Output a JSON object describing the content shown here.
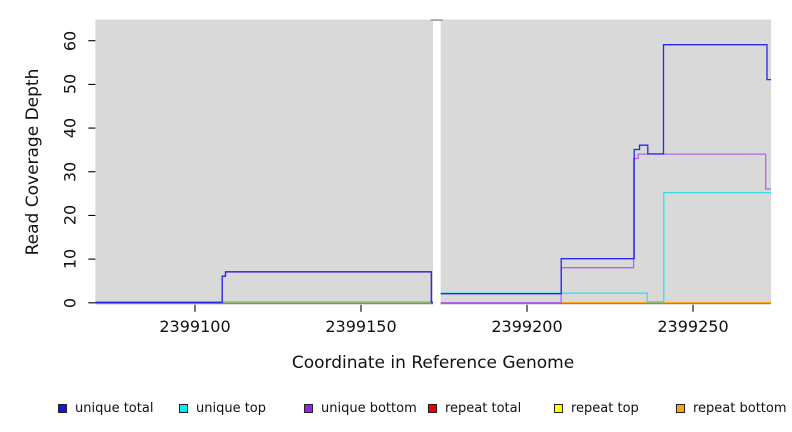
{
  "figure": {
    "background": "#ffffff",
    "panel_background": "#d9d9d9",
    "gap_cap_color": "#a6a6a6"
  },
  "axes": {
    "x": {
      "label": "Coordinate in Reference Genome",
      "ticks": [
        {
          "value": 2399100,
          "label": "2399100"
        },
        {
          "value": 2399150,
          "label": "2399150"
        },
        {
          "value": 2399200,
          "label": "2399200"
        },
        {
          "value": 2399250,
          "label": "2399250"
        }
      ]
    },
    "y": {
      "label": "Read Coverage Depth",
      "ticks": [
        {
          "value": 0,
          "label": "0"
        },
        {
          "value": 10,
          "label": "10"
        },
        {
          "value": 20,
          "label": "20"
        },
        {
          "value": 30,
          "label": "30"
        },
        {
          "value": 40,
          "label": "40"
        },
        {
          "value": 50,
          "label": "50"
        },
        {
          "value": 60,
          "label": "60"
        }
      ]
    }
  },
  "chart_data": {
    "type": "line",
    "subtype": "step",
    "title": "",
    "xlabel": "Coordinate in Reference Genome",
    "ylabel": "Read Coverage Depth",
    "x_range": [
      2399070,
      2399273.5
    ],
    "y_range": [
      0,
      60
    ],
    "grid": false,
    "panel_gap_x": [
      2399171.7,
      2399174
    ],
    "series": [
      {
        "name": "unique total",
        "color": "#2828e8",
        "segments": [
          [
            [
              2399070,
              0
            ],
            [
              2399108.2,
              6
            ],
            [
              2399109.2,
              7
            ],
            [
              2399171.2,
              0
            ],
            [
              2399171.7,
              0
            ]
          ],
          [
            [
              2399174,
              2
            ],
            [
              2399210.3,
              10
            ],
            [
              2399232.3,
              35
            ],
            [
              2399233.9,
              36
            ],
            [
              2399236.4,
              34
            ],
            [
              2399241.1,
              59
            ],
            [
              2399272.3,
              51
            ],
            [
              2399273.5,
              51
            ]
          ]
        ]
      },
      {
        "name": "unique top",
        "color": "#38dede",
        "segments": [
          [
            [
              2399070,
              0
            ],
            [
              2399171.7,
              0
            ]
          ],
          [
            [
              2399174,
              2
            ],
            [
              2399236.2,
              0
            ],
            [
              2399241.2,
              25
            ],
            [
              2399273.5,
              25
            ]
          ]
        ]
      },
      {
        "name": "unique bottom",
        "color": "#b066e8",
        "segments": [
          [
            [
              2399070,
              0
            ],
            [
              2399108.2,
              6
            ],
            [
              2399109.2,
              7
            ],
            [
              2399171.2,
              0
            ],
            [
              2399171.7,
              0
            ]
          ],
          [
            [
              2399174,
              0
            ],
            [
              2399210.3,
              8
            ],
            [
              2399232.1,
              33
            ],
            [
              2399233.5,
              34
            ],
            [
              2399271.9,
              26
            ],
            [
              2399273.5,
              26
            ]
          ]
        ]
      },
      {
        "name": "repeat total",
        "color": "#e03050",
        "segments": [
          [
            [
              2399070,
              0
            ],
            [
              2399171.7,
              0
            ]
          ],
          [
            [
              2399174,
              0
            ],
            [
              2399273.5,
              0
            ]
          ]
        ]
      },
      {
        "name": "repeat top",
        "color": "#f0e830",
        "segments": [
          [
            [
              2399070,
              0
            ],
            [
              2399171.7,
              0
            ]
          ],
          [
            [
              2399174,
              0
            ],
            [
              2399273.5,
              0
            ]
          ]
        ]
      },
      {
        "name": "repeat bottom",
        "color": "#ff9414",
        "segments": [
          [
            [
              2399070,
              0
            ],
            [
              2399171.7,
              0
            ]
          ],
          [
            [
              2399174,
              0
            ],
            [
              2399273.5,
              0
            ]
          ]
        ]
      }
    ]
  },
  "legend": {
    "items": [
      {
        "label": "unique total",
        "color": "#1515e6"
      },
      {
        "label": "unique top",
        "color": "#00eeee"
      },
      {
        "label": "unique bottom",
        "color": "#9a22e6"
      },
      {
        "label": "repeat total",
        "color": "#ee0000"
      },
      {
        "label": "repeat top",
        "color": "#ffff00"
      },
      {
        "label": "repeat bottom",
        "color": "#ffa018"
      }
    ]
  }
}
